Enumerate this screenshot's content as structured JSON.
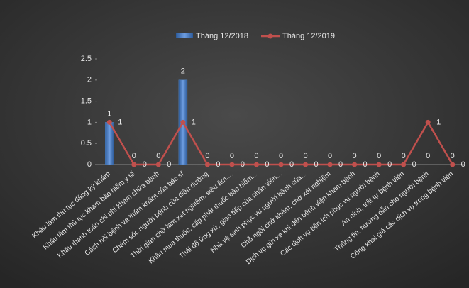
{
  "chart_data": {
    "type": "bar-line",
    "categories": [
      "Khâu làm thủ tục đăng ký khám",
      "Khâu làm thủ tục khám bảo hiểm y tế",
      "Khâu thanh toán chi phí khám chữa bệnh",
      "Cách hỏi bệnh và thăm khám của bác sĩ",
      "Chăm sóc người bệnh của điều dưỡng",
      "Thời gian chờ làm xét nghiệm, siêu âm,...",
      "Khâu mua thuốc, cấp phát thuốc bảo hiểm...",
      "Thái độ ứng xử, giao tiếp của nhân viên...",
      "Nhà vệ sinh phục vụ người bệnh của...",
      "Chỗ ngồi chờ khám, chờ xét nghiệm",
      "Dịch vụ gửi xe khi đến bệnh viện khám bệnh",
      "Các dịch vụ tiện ích phục vụ người bệnh",
      "An ninh, trật tự bệnh viện",
      "Thông tin, hướng dẫn cho người bệnh",
      "Công khai giá các dịch vụ trong bệnh viện"
    ],
    "series": [
      {
        "name": "Tháng 12/2018",
        "type": "bar",
        "color": "#4f81bd",
        "values": [
          1,
          0,
          0,
          2,
          0,
          0,
          0,
          0,
          0,
          0,
          0,
          0,
          0,
          0,
          0
        ]
      },
      {
        "name": "Tháng 12/2019",
        "type": "line",
        "color": "#c0504d",
        "values": [
          1,
          0,
          0,
          1,
          0,
          0,
          0,
          0,
          0,
          0,
          0,
          0,
          0,
          1,
          0
        ]
      }
    ],
    "ylim": [
      0,
      2.5
    ],
    "yticks": [
      0,
      0.5,
      1,
      1.5,
      2,
      2.5
    ],
    "legend": "top"
  }
}
